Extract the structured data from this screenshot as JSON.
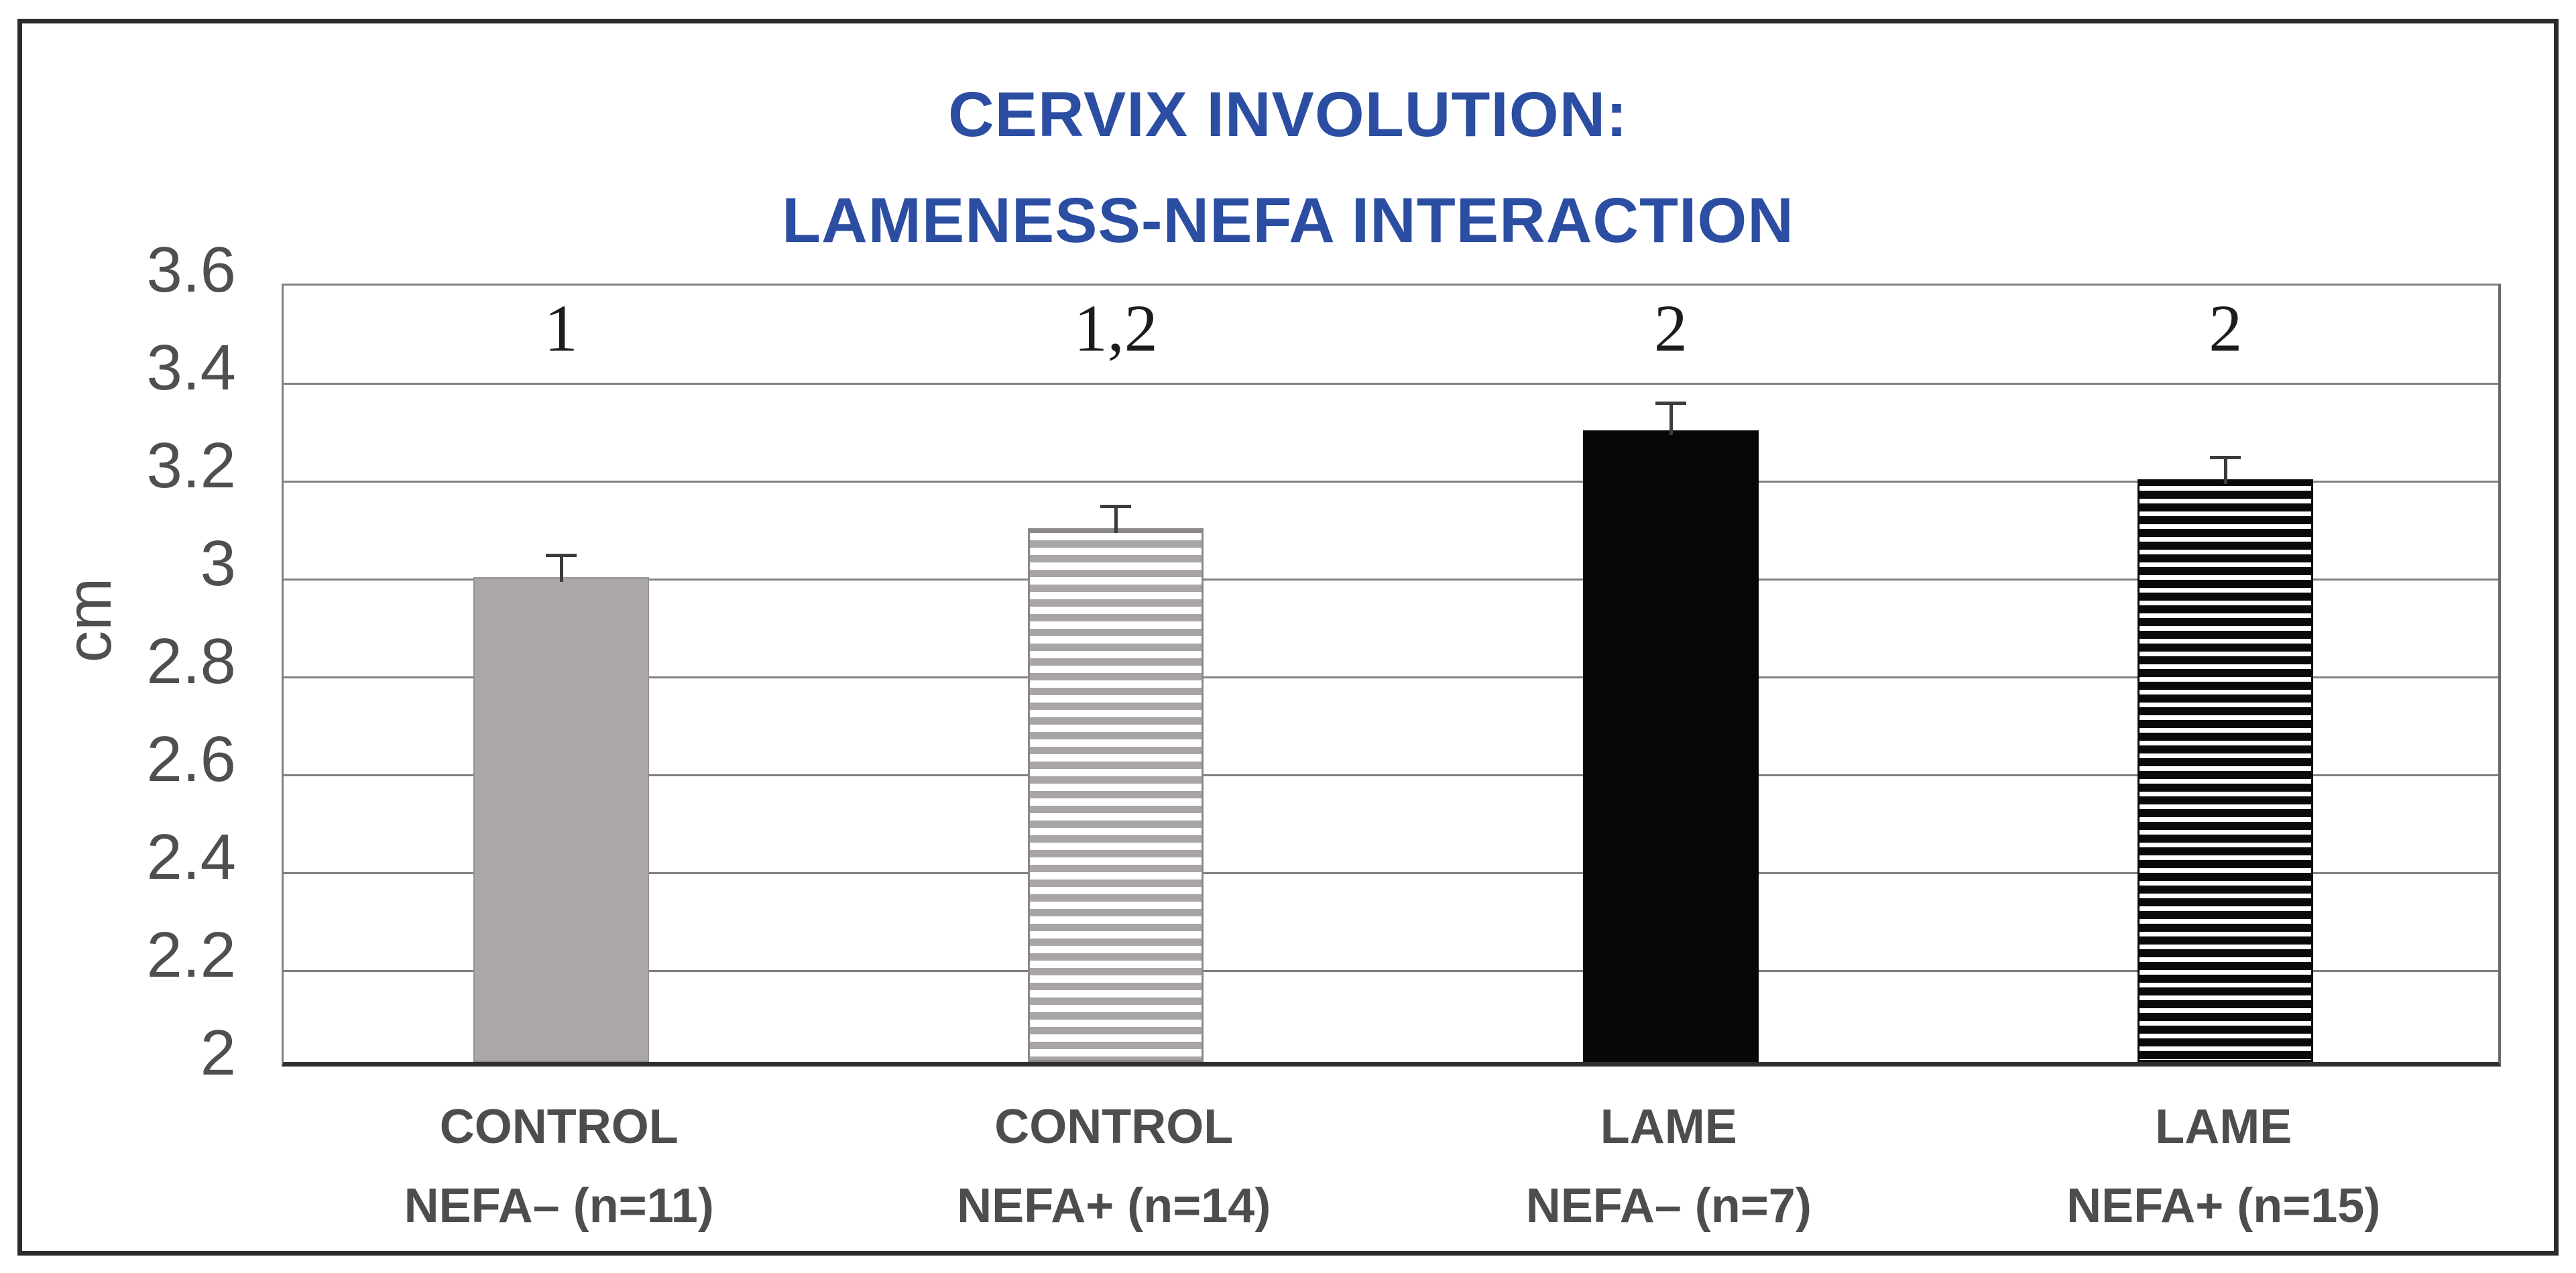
{
  "title": {
    "line1": "CERVIX INVOLUTION:",
    "line2": "LAMENESS-NEFA INTERACTION"
  },
  "chart_data": {
    "type": "bar",
    "title": "CERVIX INVOLUTION: LAMENESS-NEFA INTERACTION",
    "xlabel": "",
    "ylabel": "cm",
    "ylim": [
      2,
      3.6
    ],
    "ytick_labels": [
      "3.6",
      "3.4",
      "3.2",
      "3",
      "2.8",
      "2.6",
      "2.4",
      "2.2",
      "2"
    ],
    "grid": true,
    "legend_position": "none",
    "categories": [
      {
        "line1": "CONTROL",
        "line2": "NEFA– (n=11)"
      },
      {
        "line1": "CONTROL",
        "line2": "NEFA+ (n=14)"
      },
      {
        "line1": "LAME",
        "line2": "NEFA– (n=7)"
      },
      {
        "line1": "LAME",
        "line2": "NEFA+ (n=15)"
      }
    ],
    "values": [
      3.0,
      3.1,
      3.3,
      3.2
    ],
    "errors_plus": [
      0.05,
      0.05,
      0.06,
      0.05
    ],
    "significance_labels": [
      "1",
      "1,2",
      "2",
      "2"
    ],
    "bar_styles": [
      "solid-gray",
      "striped-gray",
      "solid-black",
      "striped-black"
    ],
    "colors": {
      "title_blue": "#2B4DA2",
      "axis_text_gray": "#4F4F4F",
      "gridline_gray": "#808080",
      "frame_dark": "#2C2C2C",
      "bar_solid_gray": "#ABA7A6",
      "bar_solid_black": "#070707"
    }
  }
}
